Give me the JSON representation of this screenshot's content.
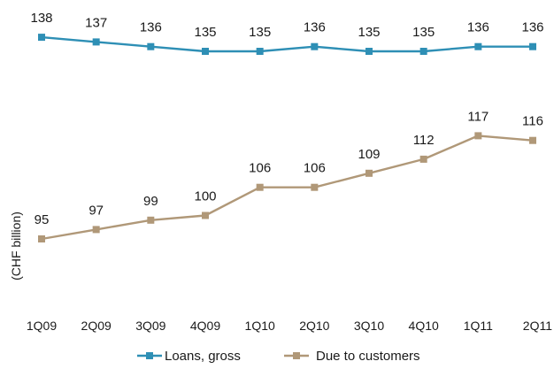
{
  "chart_data": {
    "type": "line",
    "title": "",
    "xlabel": "",
    "ylabel": "(CHF billion)",
    "categories": [
      "1Q09",
      "2Q09",
      "3Q09",
      "4Q09",
      "1Q10",
      "2Q10",
      "3Q10",
      "4Q10",
      "1Q11",
      "2Q11"
    ],
    "series": [
      {
        "name": "Loans, gross",
        "color": "#2e8fb5",
        "marker": "square",
        "values": [
          138,
          137,
          136,
          135,
          135,
          136,
          135,
          135,
          136,
          136
        ]
      },
      {
        "name": "Due to customers",
        "color": "#b09878",
        "marker": "square",
        "values": [
          95,
          97,
          99,
          100,
          106,
          106,
          109,
          112,
          117,
          116
        ]
      }
    ],
    "ylim": [
      80,
      140
    ],
    "grid": false,
    "legend_position": "bottom"
  }
}
